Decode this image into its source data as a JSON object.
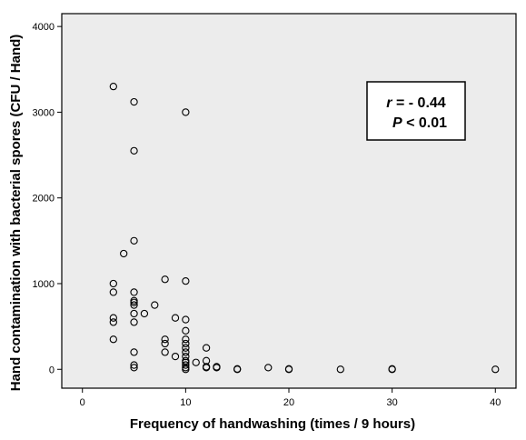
{
  "chart_data": {
    "type": "scatter",
    "xlabel": "Frequency of handwashing (times / 9 hours)",
    "ylabel": "Hand contamination with bacterial spores (CFU / Hand)",
    "xlim": [
      -2,
      42
    ],
    "ylim": [
      -220,
      4150
    ],
    "xticks": [
      0,
      10,
      20,
      30,
      40
    ],
    "yticks": [
      0,
      1000,
      2000,
      3000,
      4000
    ],
    "xtick_labels": [
      "0",
      "10",
      "20",
      "30",
      "40"
    ],
    "ytick_labels": [
      "0",
      "1000",
      "2000",
      "3000",
      "4000"
    ],
    "grid": false,
    "plot_background": "#ececec",
    "marker_color": "#000000",
    "annotation": {
      "r_symbol": "r",
      "r_rest": " = - 0.44",
      "p_symbol": "P",
      "p_rest": " < 0.01",
      "position": "top-right"
    },
    "points": [
      {
        "x": 3,
        "y": 3300
      },
      {
        "x": 3,
        "y": 1000
      },
      {
        "x": 3,
        "y": 900
      },
      {
        "x": 3,
        "y": 600
      },
      {
        "x": 3,
        "y": 550
      },
      {
        "x": 3,
        "y": 350
      },
      {
        "x": 4,
        "y": 1350
      },
      {
        "x": 5,
        "y": 3120
      },
      {
        "x": 5,
        "y": 2550
      },
      {
        "x": 5,
        "y": 1500
      },
      {
        "x": 5,
        "y": 900
      },
      {
        "x": 5,
        "y": 800
      },
      {
        "x": 5,
        "y": 780
      },
      {
        "x": 5,
        "y": 750
      },
      {
        "x": 5,
        "y": 650
      },
      {
        "x": 5,
        "y": 550
      },
      {
        "x": 5,
        "y": 200
      },
      {
        "x": 5,
        "y": 50
      },
      {
        "x": 5,
        "y": 20
      },
      {
        "x": 6,
        "y": 650
      },
      {
        "x": 7,
        "y": 750
      },
      {
        "x": 8,
        "y": 1050
      },
      {
        "x": 8,
        "y": 350
      },
      {
        "x": 8,
        "y": 300
      },
      {
        "x": 8,
        "y": 200
      },
      {
        "x": 9,
        "y": 600
      },
      {
        "x": 9,
        "y": 150
      },
      {
        "x": 10,
        "y": 3000
      },
      {
        "x": 10,
        "y": 1030
      },
      {
        "x": 10,
        "y": 580
      },
      {
        "x": 10,
        "y": 450
      },
      {
        "x": 10,
        "y": 350
      },
      {
        "x": 10,
        "y": 300
      },
      {
        "x": 10,
        "y": 250
      },
      {
        "x": 10,
        "y": 200
      },
      {
        "x": 10,
        "y": 150
      },
      {
        "x": 10,
        "y": 100
      },
      {
        "x": 10,
        "y": 80
      },
      {
        "x": 10,
        "y": 50
      },
      {
        "x": 10,
        "y": 20
      },
      {
        "x": 10,
        "y": 0
      },
      {
        "x": 11,
        "y": 80
      },
      {
        "x": 12,
        "y": 250
      },
      {
        "x": 12,
        "y": 100
      },
      {
        "x": 12,
        "y": 30
      },
      {
        "x": 12,
        "y": 20
      },
      {
        "x": 13,
        "y": 30
      },
      {
        "x": 13,
        "y": 20
      },
      {
        "x": 15,
        "y": 0
      },
      {
        "x": 15,
        "y": 5
      },
      {
        "x": 18,
        "y": 20
      },
      {
        "x": 20,
        "y": 0
      },
      {
        "x": 20,
        "y": 5
      },
      {
        "x": 25,
        "y": 0
      },
      {
        "x": 30,
        "y": 0
      },
      {
        "x": 30,
        "y": 5
      },
      {
        "x": 40,
        "y": 0
      }
    ]
  }
}
